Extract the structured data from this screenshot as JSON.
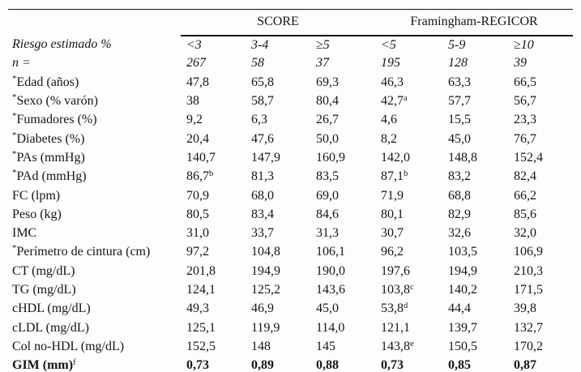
{
  "table": {
    "star_symbol": "*",
    "group_headers": [
      "SCORE",
      "Framingham-REGICOR"
    ],
    "rows": [
      {
        "label": "Riesgo estimado %",
        "italic": true,
        "cells": [
          "<3",
          "3-4",
          "≥5",
          "<5",
          "5-9",
          "≥10"
        ]
      },
      {
        "label": "n =",
        "italic": true,
        "cells": [
          "267",
          "58",
          "37",
          "195",
          "128",
          "39"
        ]
      },
      {
        "label": "Edad (años)",
        "star": true,
        "cells": [
          "47,8",
          "65,8",
          "69,3",
          "46,3",
          "63,3",
          "66,5"
        ]
      },
      {
        "label": "Sexo (% varón)",
        "star": true,
        "cells": [
          "38",
          "58,7",
          "80,4",
          "42,7",
          "57,7",
          "56,7"
        ],
        "sups": [
          "",
          "",
          "",
          "a",
          "",
          ""
        ]
      },
      {
        "label": "Fumadores (%)",
        "star": true,
        "cells": [
          "9,2",
          "6,3",
          "26,7",
          "4,6",
          "15,5",
          "23,3"
        ]
      },
      {
        "label": "Diabetes (%)",
        "star": true,
        "cells": [
          "20,4",
          "47,6",
          "50,0",
          "8,2",
          "45,0",
          "76,7"
        ]
      },
      {
        "label": "PAs (mmHg)",
        "star": true,
        "cells": [
          "140,7",
          "147,9",
          "160,9",
          "142,0",
          "148,8",
          "152,4"
        ]
      },
      {
        "label": "PAd (mmHg)",
        "star": true,
        "cells": [
          "86,7",
          "81,3",
          "83,5",
          "87,1",
          "83,2",
          "82,4"
        ],
        "sups": [
          "b",
          "",
          "",
          "b",
          "",
          ""
        ]
      },
      {
        "label": "FC (lpm)",
        "cells": [
          "70,9",
          "68,0",
          "69,0",
          "71,9",
          "68,8",
          "66,2"
        ]
      },
      {
        "label": "Peso (kg)",
        "cells": [
          "80,5",
          "83,4",
          "84,6",
          "80,1",
          "82,9",
          "85,6"
        ]
      },
      {
        "label": "IMC",
        "cells": [
          "31,0",
          "33,7",
          "31,3",
          "30,7",
          "32,6",
          "32,0"
        ]
      },
      {
        "label": "Perímetro de cintura (cm)",
        "star": true,
        "cells": [
          "97,2",
          "104,8",
          "106,1",
          "96,2",
          "103,5",
          "106,9"
        ]
      },
      {
        "label": "CT (mg/dL)",
        "cells": [
          "201,8",
          "194,9",
          "190,0",
          "197,6",
          "194,9",
          "210,3"
        ]
      },
      {
        "label": "TG (mg/dL)",
        "cells": [
          "124,1",
          "125,2",
          "143,6",
          "103,8",
          "140,2",
          "171,5"
        ],
        "sups": [
          "",
          "",
          "",
          "c",
          "",
          ""
        ]
      },
      {
        "label": "cHDL (mg/dL)",
        "cells": [
          "49,3",
          "46,9",
          "45,0",
          "53,8",
          "44,4",
          "39,8"
        ],
        "sups": [
          "",
          "",
          "",
          "d",
          "",
          ""
        ]
      },
      {
        "label": "cLDL (mg/dL)",
        "cells": [
          "125,1",
          "119,9",
          "114,0",
          "121,1",
          "139,7",
          "132,7"
        ]
      },
      {
        "label": "Col no-HDL (mg/dL)",
        "cells": [
          "152,5",
          "148",
          "145",
          "143,8",
          "150,5",
          "170,2"
        ],
        "sups": [
          "",
          "",
          "",
          "e",
          "",
          ""
        ]
      },
      {
        "label": "GIM (mm)",
        "label_sup": "f",
        "bold": true,
        "cells": [
          "0,73",
          "0,89",
          "0,88",
          "0,73",
          "0,85",
          "0,87"
        ]
      }
    ]
  }
}
